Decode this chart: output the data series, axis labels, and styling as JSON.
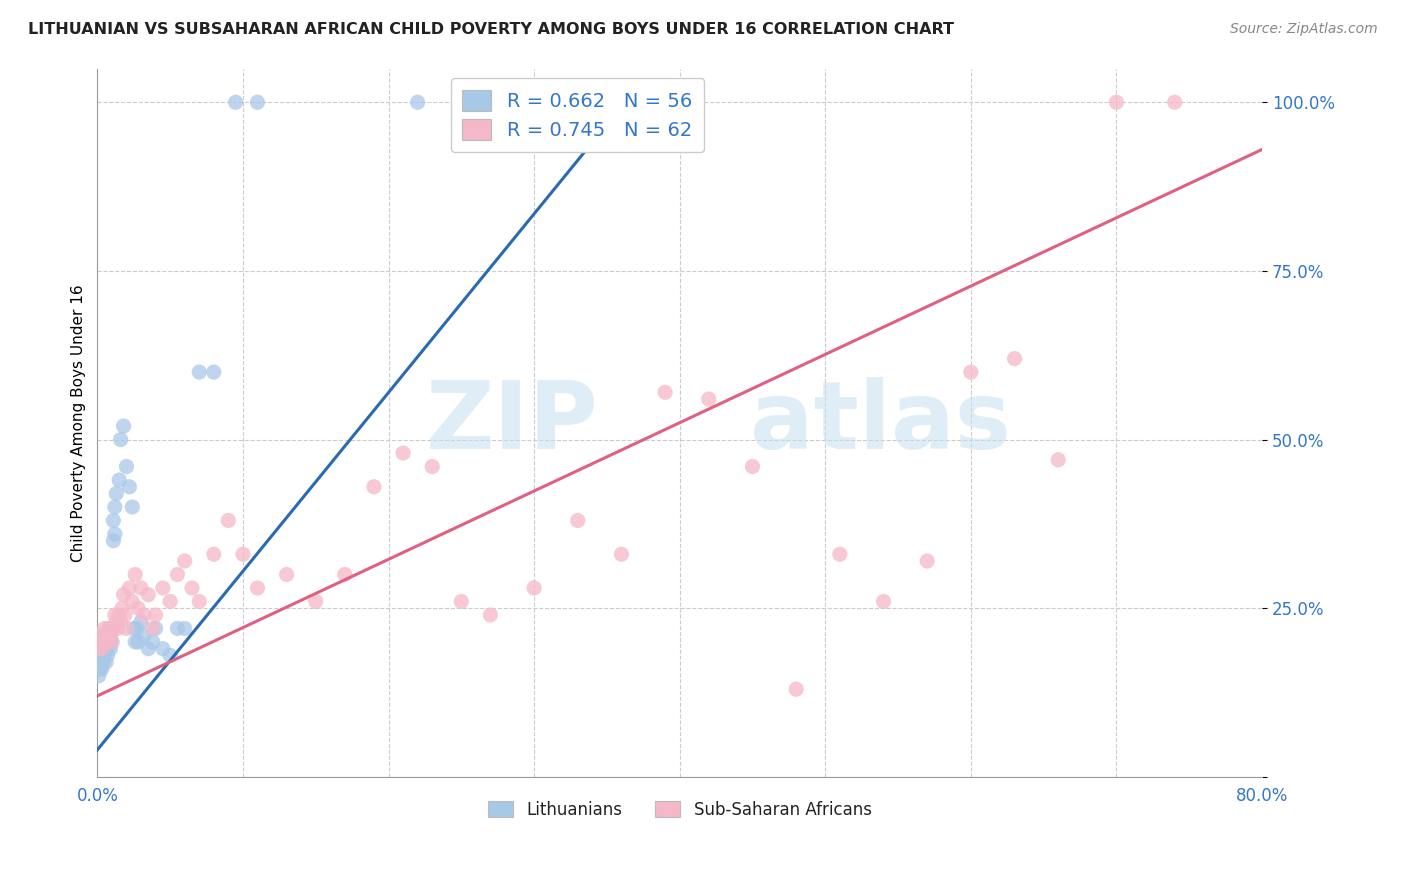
{
  "title": "LITHUANIAN VS SUBSAHARAN AFRICAN CHILD POVERTY AMONG BOYS UNDER 16 CORRELATION CHART",
  "source": "Source: ZipAtlas.com",
  "ylabel": "Child Poverty Among Boys Under 16",
  "xlim": [
    0.0,
    0.8
  ],
  "ylim": [
    0.0,
    1.05
  ],
  "xtick_positions": [
    0.0,
    0.1,
    0.2,
    0.3,
    0.4,
    0.5,
    0.6,
    0.7,
    0.8
  ],
  "xticklabels": [
    "0.0%",
    "",
    "",
    "",
    "",
    "",
    "",
    "",
    "80.0%"
  ],
  "ytick_positions": [
    0.0,
    0.25,
    0.5,
    0.75,
    1.0
  ],
  "yticklabels": [
    "",
    "25.0%",
    "50.0%",
    "75.0%",
    "100.0%"
  ],
  "blue_R": 0.662,
  "blue_N": 56,
  "pink_R": 0.745,
  "pink_N": 62,
  "blue_color": "#a8c8e8",
  "pink_color": "#f5b8c8",
  "blue_line_color": "#2a6ab0",
  "pink_line_color": "#e06080",
  "watermark_zip": "ZIP",
  "watermark_atlas": "atlas",
  "legend_label_blue": "Lithuanians",
  "legend_label_pink": "Sub-Saharan Africans",
  "blue_line_x0": 0.0,
  "blue_line_y0": 0.04,
  "blue_line_x1": 0.37,
  "blue_line_y1": 1.02,
  "pink_line_x0": 0.0,
  "pink_line_y0": 0.12,
  "pink_line_x1": 0.8,
  "pink_line_y1": 0.93,
  "blue_scatter_x": [
    0.001,
    0.001,
    0.002,
    0.002,
    0.002,
    0.003,
    0.003,
    0.003,
    0.004,
    0.004,
    0.004,
    0.005,
    0.005,
    0.005,
    0.006,
    0.006,
    0.007,
    0.007,
    0.007,
    0.008,
    0.008,
    0.009,
    0.009,
    0.01,
    0.01,
    0.011,
    0.011,
    0.012,
    0.012,
    0.013,
    0.015,
    0.016,
    0.018,
    0.02,
    0.022,
    0.024,
    0.025,
    0.026,
    0.027,
    0.028,
    0.03,
    0.032,
    0.035,
    0.038,
    0.04,
    0.045,
    0.05,
    0.055,
    0.06,
    0.07,
    0.08,
    0.095,
    0.11,
    0.22,
    0.33,
    0.37
  ],
  "blue_scatter_y": [
    0.17,
    0.15,
    0.18,
    0.16,
    0.2,
    0.17,
    0.19,
    0.16,
    0.18,
    0.2,
    0.17,
    0.19,
    0.21,
    0.18,
    0.2,
    0.17,
    0.19,
    0.21,
    0.18,
    0.2,
    0.22,
    0.21,
    0.19,
    0.22,
    0.2,
    0.35,
    0.38,
    0.36,
    0.4,
    0.42,
    0.44,
    0.5,
    0.52,
    0.46,
    0.43,
    0.4,
    0.22,
    0.2,
    0.22,
    0.2,
    0.23,
    0.21,
    0.19,
    0.2,
    0.22,
    0.19,
    0.18,
    0.22,
    0.22,
    0.6,
    0.6,
    1.0,
    1.0,
    1.0,
    1.0,
    1.0
  ],
  "pink_scatter_x": [
    0.001,
    0.002,
    0.003,
    0.004,
    0.005,
    0.006,
    0.007,
    0.008,
    0.009,
    0.01,
    0.011,
    0.012,
    0.013,
    0.014,
    0.015,
    0.016,
    0.017,
    0.018,
    0.019,
    0.02,
    0.022,
    0.024,
    0.026,
    0.028,
    0.03,
    0.032,
    0.035,
    0.038,
    0.04,
    0.045,
    0.05,
    0.055,
    0.06,
    0.065,
    0.07,
    0.08,
    0.09,
    0.1,
    0.11,
    0.13,
    0.15,
    0.17,
    0.19,
    0.21,
    0.23,
    0.25,
    0.27,
    0.3,
    0.33,
    0.36,
    0.39,
    0.42,
    0.45,
    0.48,
    0.51,
    0.54,
    0.57,
    0.6,
    0.63,
    0.66,
    0.7,
    0.74
  ],
  "pink_scatter_y": [
    0.19,
    0.21,
    0.19,
    0.2,
    0.22,
    0.21,
    0.2,
    0.22,
    0.21,
    0.2,
    0.22,
    0.24,
    0.23,
    0.22,
    0.24,
    0.23,
    0.25,
    0.27,
    0.24,
    0.22,
    0.28,
    0.26,
    0.3,
    0.25,
    0.28,
    0.24,
    0.27,
    0.22,
    0.24,
    0.28,
    0.26,
    0.3,
    0.32,
    0.28,
    0.26,
    0.33,
    0.38,
    0.33,
    0.28,
    0.3,
    0.26,
    0.3,
    0.43,
    0.48,
    0.46,
    0.26,
    0.24,
    0.28,
    0.38,
    0.33,
    0.57,
    0.56,
    0.46,
    0.13,
    0.33,
    0.26,
    0.32,
    0.6,
    0.62,
    0.47,
    1.0,
    1.0
  ]
}
